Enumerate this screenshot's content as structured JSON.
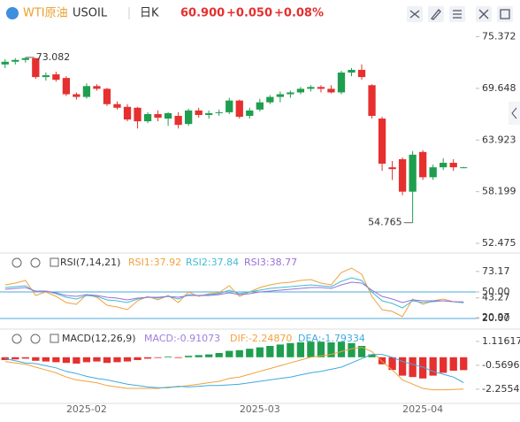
{
  "header": {
    "instrument": "WTI原油",
    "symbol": "USOIL",
    "period": "日K",
    "price": "60.900",
    "change": "+0.050",
    "change_pct": "+0.08%"
  },
  "chart_data": [
    {
      "type": "candlestick",
      "categories": [
        null,
        null,
        null,
        null,
        null,
        null,
        null,
        null,
        "2025-02",
        null,
        null,
        null,
        null,
        null,
        null,
        null,
        null,
        null,
        null,
        null,
        null,
        null,
        null,
        null,
        null,
        "2025-03",
        null,
        null,
        null,
        null,
        null,
        null,
        null,
        null,
        null,
        null,
        null,
        null,
        null,
        null,
        null,
        "2025-04",
        null,
        null,
        null,
        null
      ],
      "open": [
        72.3,
        72.6,
        72.8,
        73.0,
        70.9,
        71.2,
        70.8,
        69.0,
        68.7,
        69.9,
        69.6,
        67.9,
        67.6,
        67.5,
        66.0,
        66.8,
        66.3,
        66.6,
        65.7,
        67.2,
        66.7,
        66.9,
        67.0,
        68.3,
        66.6,
        67.3,
        68.1,
        68.7,
        69.0,
        69.2,
        69.6,
        69.8,
        69.6,
        69.2,
        71.4,
        71.7,
        70.0,
        66.3,
        60.9,
        61.8,
        58.2,
        62.6,
        59.8,
        60.9,
        61.4,
        60.85
      ],
      "high": [
        72.9,
        73.0,
        73.082,
        73.0,
        71.4,
        71.5,
        71.0,
        69.2,
        70.2,
        70.1,
        69.7,
        68.2,
        67.9,
        67.6,
        67.0,
        67.2,
        67.0,
        67.0,
        67.4,
        67.5,
        67.2,
        67.3,
        68.6,
        68.4,
        67.5,
        68.5,
        68.9,
        69.3,
        69.4,
        69.8,
        70.0,
        70.0,
        70.0,
        71.6,
        71.9,
        72.3,
        70.1,
        66.5,
        61.6,
        62.0,
        62.7,
        62.8,
        61.2,
        61.9,
        61.8,
        60.95
      ],
      "low": [
        71.9,
        72.3,
        72.5,
        70.7,
        70.5,
        70.4,
        68.8,
        68.4,
        68.5,
        69.4,
        67.7,
        67.3,
        66.0,
        65.2,
        65.8,
        66.0,
        65.5,
        65.2,
        65.5,
        66.4,
        66.3,
        66.6,
        66.8,
        66.3,
        66.3,
        67.1,
        67.9,
        68.1,
        68.6,
        69.0,
        69.3,
        69.2,
        69.1,
        69.0,
        71.0,
        70.6,
        66.3,
        60.5,
        59.5,
        57.8,
        54.765,
        59.5,
        59.5,
        60.6,
        60.5,
        60.8
      ],
      "close": [
        72.6,
        72.8,
        73.0,
        70.9,
        71.1,
        70.6,
        69.0,
        68.7,
        69.9,
        69.6,
        67.9,
        67.5,
        66.2,
        66.0,
        66.8,
        66.4,
        66.9,
        65.6,
        67.2,
        66.7,
        66.9,
        67.0,
        68.3,
        66.5,
        67.2,
        68.1,
        68.7,
        69.0,
        69.2,
        69.6,
        69.8,
        69.6,
        69.2,
        71.4,
        71.7,
        70.9,
        66.6,
        61.3,
        60.7,
        58.2,
        62.3,
        59.8,
        60.9,
        61.4,
        60.9,
        60.9
      ],
      "up_color": "#1f9e4f",
      "down_color": "#e5302f",
      "ylim": [
        51.5,
        76.5
      ],
      "yticks": [
        75.372,
        69.648,
        63.923,
        58.199,
        52.475
      ],
      "annotations": [
        73.082,
        54.765
      ]
    },
    {
      "type": "line",
      "title": "RSI(7,14,21)",
      "series": [
        {
          "name": "RSI1:37.92",
          "color": "#f0a23c",
          "values": [
            58,
            60,
            63,
            46,
            50,
            45,
            38,
            36,
            47,
            44,
            35,
            33,
            30,
            40,
            45,
            41,
            46,
            38,
            50,
            45,
            48,
            49,
            57,
            45,
            50,
            55,
            58,
            60,
            61,
            63,
            64,
            60,
            58,
            72,
            77,
            70,
            45,
            30,
            28,
            22,
            42,
            36,
            40,
            42,
            39,
            37.92
          ]
        },
        {
          "name": "RSI2:37.84",
          "color": "#3fbcd4",
          "values": [
            55,
            56,
            57,
            50,
            51,
            48,
            44,
            42,
            46,
            45,
            41,
            40,
            38,
            42,
            44,
            43,
            45,
            42,
            47,
            46,
            47,
            48,
            52,
            48,
            50,
            52,
            54,
            55,
            56,
            57,
            58,
            57,
            56,
            62,
            66,
            63,
            50,
            40,
            37,
            32,
            40,
            38,
            39,
            40,
            39,
            37.84
          ]
        },
        {
          "name": "RSI3:38.77",
          "color": "#9b6fd8",
          "values": [
            53,
            54,
            55,
            51,
            51,
            49,
            46,
            45,
            47,
            46,
            44,
            43,
            41,
            43,
            44,
            44,
            45,
            44,
            46,
            46,
            46,
            47,
            49,
            47,
            48,
            50,
            51,
            52,
            53,
            54,
            55,
            55,
            54,
            58,
            61,
            60,
            52,
            45,
            42,
            38,
            41,
            40,
            40,
            40,
            39,
            38.77
          ]
        }
      ],
      "ylim": [
        10,
        90
      ],
      "yticks": [
        73.17,
        {
          "value": 50,
          "label": "50.00"
        },
        43.27,
        {
          "value": 20,
          "label": "20.00"
        },
        20.97
      ],
      "levels": [
        50,
        20
      ],
      "level_color": "#4aa8d8"
    },
    {
      "type": "macd",
      "title": "MACD(12,26,9)",
      "histogram": {
        "name": "MACD:-0.91073",
        "color": "#a07ee0",
        "up_color": "#1f9e4f",
        "down_color": "#e5302f",
        "values": [
          -0.2,
          -0.15,
          -0.1,
          -0.25,
          -0.3,
          -0.35,
          -0.4,
          -0.45,
          -0.35,
          -0.3,
          -0.4,
          -0.35,
          -0.3,
          -0.2,
          -0.1,
          -0.05,
          0.05,
          -0.05,
          0.1,
          0.15,
          0.2,
          0.3,
          0.45,
          0.5,
          0.6,
          0.7,
          0.8,
          0.9,
          1.0,
          1.05,
          1.1,
          1.1,
          1.05,
          1.1,
          1.0,
          0.8,
          0.2,
          -0.5,
          -0.9,
          -1.3,
          -1.4,
          -1.5,
          -1.3,
          -1.1,
          -0.95,
          -0.91073
        ]
      },
      "series": [
        {
          "name": "DIF:-2.24870",
          "color": "#f0a23c",
          "values": [
            -0.3,
            -0.4,
            -0.5,
            -0.7,
            -0.9,
            -1.1,
            -1.4,
            -1.6,
            -1.7,
            -1.8,
            -2.0,
            -2.1,
            -2.2,
            -2.2,
            -2.2,
            -2.2,
            -2.1,
            -2.1,
            -2.0,
            -1.9,
            -1.8,
            -1.7,
            -1.5,
            -1.4,
            -1.2,
            -1.0,
            -0.8,
            -0.6,
            -0.4,
            -0.2,
            0.0,
            0.1,
            0.2,
            0.4,
            0.6,
            0.7,
            0.4,
            -0.3,
            -0.9,
            -1.6,
            -1.9,
            -2.2,
            -2.3,
            -2.3,
            -2.28,
            -2.2487
          ]
        },
        {
          "name": "DEA:-1.79334",
          "color": "#3fa9e0",
          "values": [
            -0.1,
            -0.25,
            -0.4,
            -0.45,
            -0.6,
            -0.75,
            -1.0,
            -1.15,
            -1.35,
            -1.5,
            -1.6,
            -1.75,
            -1.9,
            -2.0,
            -2.1,
            -2.15,
            -2.15,
            -2.05,
            -2.1,
            -2.05,
            -2.0,
            -2.0,
            -1.95,
            -1.9,
            -1.8,
            -1.7,
            -1.6,
            -1.5,
            -1.4,
            -1.25,
            -1.1,
            -1.0,
            -0.85,
            -0.7,
            -0.4,
            -0.1,
            0.2,
            0.2,
            0.0,
            -0.3,
            -0.5,
            -0.7,
            -1.0,
            -1.2,
            -1.4,
            -1.79334
          ]
        }
      ],
      "ylim": [
        -3.2,
        1.8
      ],
      "yticks": [
        1.11617,
        -0.56966,
        -2.25549
      ]
    }
  ]
}
